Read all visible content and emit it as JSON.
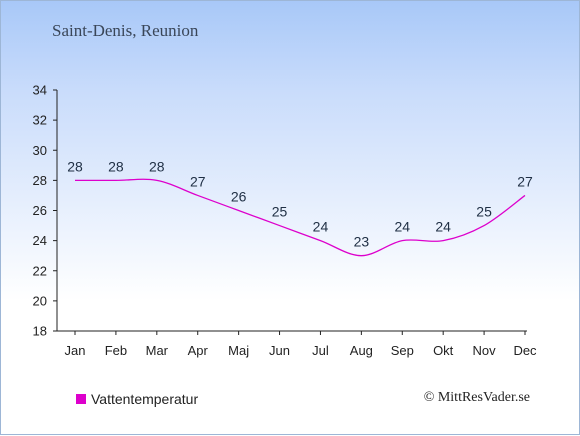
{
  "header": {
    "title": "Saint-Denis, Reunion"
  },
  "legend": {
    "label": "Vattentemperatur",
    "color": "#dd00cc"
  },
  "credit": "© MittResVader.se",
  "chart_data": {
    "type": "line",
    "title": "Saint-Denis, Reunion",
    "xlabel": "",
    "ylabel": "",
    "categories": [
      "Jan",
      "Feb",
      "Mar",
      "Apr",
      "Maj",
      "Jun",
      "Jul",
      "Aug",
      "Sep",
      "Okt",
      "Nov",
      "Dec"
    ],
    "series": [
      {
        "name": "Vattentemperatur",
        "color": "#dd00cc",
        "values": [
          28,
          28,
          28,
          27,
          26,
          25,
          24,
          23,
          24,
          24,
          25,
          27
        ]
      }
    ],
    "data_labels": [
      "28",
      "28",
      "28",
      "27",
      "26",
      "25",
      "24",
      "23",
      "24",
      "24",
      "25",
      "27"
    ],
    "ylim": [
      18,
      34
    ],
    "yticks": [
      18,
      20,
      22,
      24,
      26,
      28,
      30,
      32,
      34
    ],
    "grid": false,
    "legend_position": "bottom-left"
  }
}
